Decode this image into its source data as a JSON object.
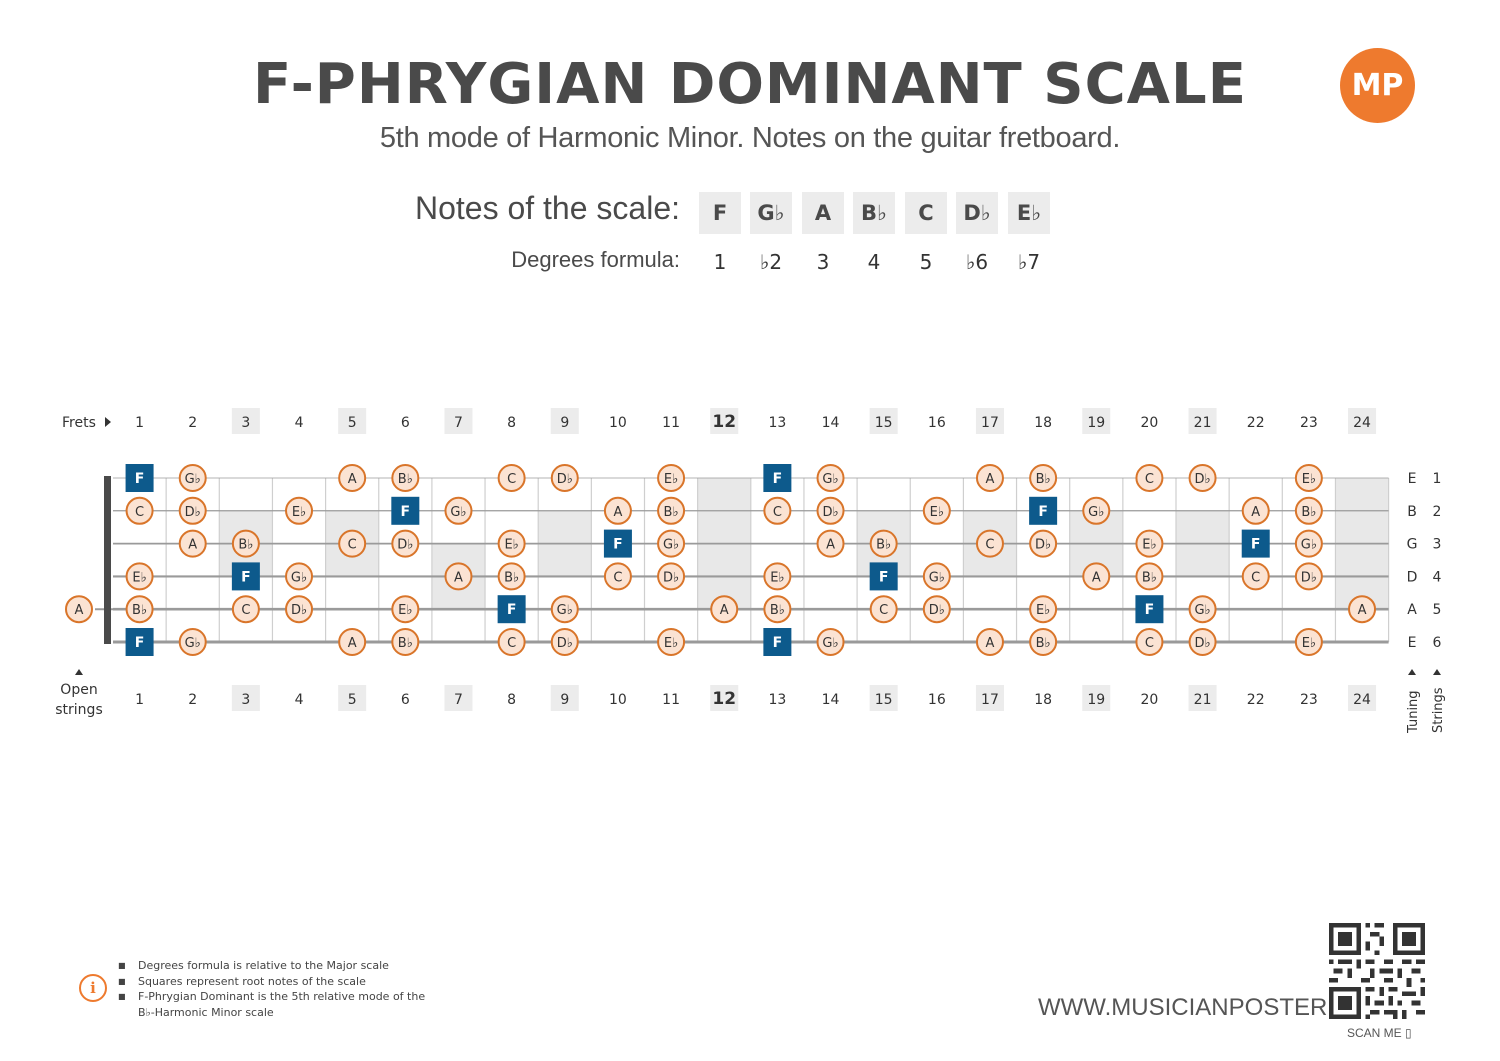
{
  "title": "F-PHRYGIAN DOMINANT SCALE",
  "subtitle": "5th mode of Harmonic Minor. Notes on the guitar fretboard.",
  "logo_text": "MP",
  "notes_label": "Notes of the scale:",
  "degrees_label": "Degrees formula:",
  "scale": [
    {
      "note": "F",
      "degree": "1"
    },
    {
      "note": "G♭",
      "degree": "♭2"
    },
    {
      "note": "A",
      "degree": "3"
    },
    {
      "note": "B♭",
      "degree": "4"
    },
    {
      "note": "C",
      "degree": "5"
    },
    {
      "note": "D♭",
      "degree": "♭6"
    },
    {
      "note": "E♭",
      "degree": "♭7"
    }
  ],
  "fretboard": {
    "frets_label": "Frets",
    "open_strings_label": [
      "Open",
      "strings"
    ],
    "tuning_label": "Tuning",
    "strings_label": "Strings",
    "fret_numbers": [
      "1",
      "2",
      "3",
      "4",
      "5",
      "6",
      "7",
      "8",
      "9",
      "10",
      "11",
      "12",
      "13",
      "14",
      "15",
      "16",
      "17",
      "18",
      "19",
      "20",
      "21",
      "22",
      "23",
      "24"
    ],
    "highlighted_frets": [
      3,
      5,
      7,
      9,
      12,
      15,
      17,
      19,
      21,
      24
    ],
    "strings": [
      {
        "tuning": "E",
        "number": "1"
      },
      {
        "tuning": "B",
        "number": "2"
      },
      {
        "tuning": "G",
        "number": "3"
      },
      {
        "tuning": "D",
        "number": "4"
      },
      {
        "tuning": "A",
        "number": "5"
      },
      {
        "tuning": "E",
        "number": "6"
      }
    ],
    "root_note": "F",
    "display_names": {
      "F": "F",
      "Gb": "G♭",
      "A": "A",
      "Bb": "B♭",
      "C": "C",
      "Db": "D♭",
      "Eb": "E♭"
    },
    "positions": [
      {
        "string": 1,
        "fret": 1,
        "note": "F"
      },
      {
        "string": 1,
        "fret": 2,
        "note": "Gb"
      },
      {
        "string": 1,
        "fret": 5,
        "note": "A"
      },
      {
        "string": 1,
        "fret": 6,
        "note": "Bb"
      },
      {
        "string": 1,
        "fret": 8,
        "note": "C"
      },
      {
        "string": 1,
        "fret": 9,
        "note": "Db"
      },
      {
        "string": 1,
        "fret": 11,
        "note": "Eb"
      },
      {
        "string": 1,
        "fret": 13,
        "note": "F"
      },
      {
        "string": 1,
        "fret": 14,
        "note": "Gb"
      },
      {
        "string": 1,
        "fret": 17,
        "note": "A"
      },
      {
        "string": 1,
        "fret": 18,
        "note": "Bb"
      },
      {
        "string": 1,
        "fret": 20,
        "note": "C"
      },
      {
        "string": 1,
        "fret": 21,
        "note": "Db"
      },
      {
        "string": 1,
        "fret": 23,
        "note": "Eb"
      },
      {
        "string": 2,
        "fret": 1,
        "note": "C"
      },
      {
        "string": 2,
        "fret": 2,
        "note": "Db"
      },
      {
        "string": 2,
        "fret": 4,
        "note": "Eb"
      },
      {
        "string": 2,
        "fret": 6,
        "note": "F"
      },
      {
        "string": 2,
        "fret": 7,
        "note": "Gb"
      },
      {
        "string": 2,
        "fret": 10,
        "note": "A"
      },
      {
        "string": 2,
        "fret": 11,
        "note": "Bb"
      },
      {
        "string": 2,
        "fret": 13,
        "note": "C"
      },
      {
        "string": 2,
        "fret": 14,
        "note": "Db"
      },
      {
        "string": 2,
        "fret": 16,
        "note": "Eb"
      },
      {
        "string": 2,
        "fret": 18,
        "note": "F"
      },
      {
        "string": 2,
        "fret": 19,
        "note": "Gb"
      },
      {
        "string": 2,
        "fret": 22,
        "note": "A"
      },
      {
        "string": 2,
        "fret": 23,
        "note": "Bb"
      },
      {
        "string": 3,
        "fret": 2,
        "note": "A"
      },
      {
        "string": 3,
        "fret": 3,
        "note": "Bb"
      },
      {
        "string": 3,
        "fret": 5,
        "note": "C"
      },
      {
        "string": 3,
        "fret": 6,
        "note": "Db"
      },
      {
        "string": 3,
        "fret": 8,
        "note": "Eb"
      },
      {
        "string": 3,
        "fret": 10,
        "note": "F"
      },
      {
        "string": 3,
        "fret": 11,
        "note": "Gb"
      },
      {
        "string": 3,
        "fret": 14,
        "note": "A"
      },
      {
        "string": 3,
        "fret": 15,
        "note": "Bb"
      },
      {
        "string": 3,
        "fret": 17,
        "note": "C"
      },
      {
        "string": 3,
        "fret": 18,
        "note": "Db"
      },
      {
        "string": 3,
        "fret": 20,
        "note": "Eb"
      },
      {
        "string": 3,
        "fret": 22,
        "note": "F"
      },
      {
        "string": 3,
        "fret": 23,
        "note": "Gb"
      },
      {
        "string": 4,
        "fret": 1,
        "note": "Eb"
      },
      {
        "string": 4,
        "fret": 3,
        "note": "F"
      },
      {
        "string": 4,
        "fret": 4,
        "note": "Gb"
      },
      {
        "string": 4,
        "fret": 7,
        "note": "A"
      },
      {
        "string": 4,
        "fret": 8,
        "note": "Bb"
      },
      {
        "string": 4,
        "fret": 10,
        "note": "C"
      },
      {
        "string": 4,
        "fret": 11,
        "note": "Db"
      },
      {
        "string": 4,
        "fret": 13,
        "note": "Eb"
      },
      {
        "string": 4,
        "fret": 15,
        "note": "F"
      },
      {
        "string": 4,
        "fret": 16,
        "note": "Gb"
      },
      {
        "string": 4,
        "fret": 19,
        "note": "A"
      },
      {
        "string": 4,
        "fret": 20,
        "note": "Bb"
      },
      {
        "string": 4,
        "fret": 22,
        "note": "C"
      },
      {
        "string": 4,
        "fret": 23,
        "note": "Db"
      },
      {
        "string": 5,
        "fret": 0,
        "note": "A"
      },
      {
        "string": 5,
        "fret": 1,
        "note": "Bb"
      },
      {
        "string": 5,
        "fret": 3,
        "note": "C"
      },
      {
        "string": 5,
        "fret": 4,
        "note": "Db"
      },
      {
        "string": 5,
        "fret": 6,
        "note": "Eb"
      },
      {
        "string": 5,
        "fret": 8,
        "note": "F"
      },
      {
        "string": 5,
        "fret": 9,
        "note": "Gb"
      },
      {
        "string": 5,
        "fret": 12,
        "note": "A"
      },
      {
        "string": 5,
        "fret": 13,
        "note": "Bb"
      },
      {
        "string": 5,
        "fret": 15,
        "note": "C"
      },
      {
        "string": 5,
        "fret": 16,
        "note": "Db"
      },
      {
        "string": 5,
        "fret": 18,
        "note": "Eb"
      },
      {
        "string": 5,
        "fret": 20,
        "note": "F"
      },
      {
        "string": 5,
        "fret": 21,
        "note": "Gb"
      },
      {
        "string": 5,
        "fret": 24,
        "note": "A"
      },
      {
        "string": 6,
        "fret": 1,
        "note": "F"
      },
      {
        "string": 6,
        "fret": 2,
        "note": "Gb"
      },
      {
        "string": 6,
        "fret": 5,
        "note": "A"
      },
      {
        "string": 6,
        "fret": 6,
        "note": "Bb"
      },
      {
        "string": 6,
        "fret": 8,
        "note": "C"
      },
      {
        "string": 6,
        "fret": 9,
        "note": "Db"
      },
      {
        "string": 6,
        "fret": 11,
        "note": "Eb"
      },
      {
        "string": 6,
        "fret": 13,
        "note": "F"
      },
      {
        "string": 6,
        "fret": 14,
        "note": "Gb"
      },
      {
        "string": 6,
        "fret": 17,
        "note": "A"
      },
      {
        "string": 6,
        "fret": 18,
        "note": "Bb"
      },
      {
        "string": 6,
        "fret": 20,
        "note": "C"
      },
      {
        "string": 6,
        "fret": 21,
        "note": "Db"
      },
      {
        "string": 6,
        "fret": 23,
        "note": "Eb"
      }
    ]
  },
  "colors": {
    "root_fill": "#0d5a8c",
    "note_fill": "#fbe3d3",
    "note_border": "#d9752a",
    "marker_fill": "#e8e8e8",
    "accent": "#ee7a2e"
  },
  "footnotes": [
    "Degrees formula is relative to the Major scale",
    "Squares represent root notes of the scale",
    "F-Phrygian Dominant is the 5th relative mode of the",
    "B♭-Harmonic Minor scale"
  ],
  "website": "WWW.MUSICIANPOSTER.COM",
  "scan_me": "SCAN ME"
}
